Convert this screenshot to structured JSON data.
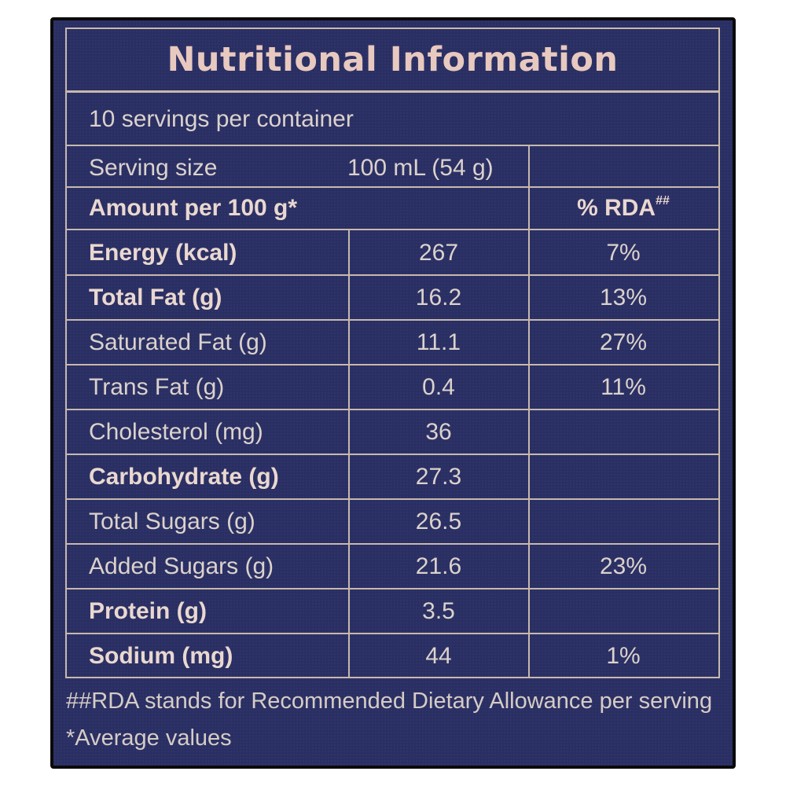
{
  "label": {
    "title": "Nutritional Information",
    "servings": "10 servings per container",
    "serving_size_label": "Serving size",
    "serving_size_value": "100 mL (54 g)",
    "amount_header": "Amount per 100 g*",
    "rda_header": "% RDA",
    "rda_header_mark": "##",
    "rows": [
      {
        "name": "Energy (kcal)",
        "value": "267",
        "rda": "7%",
        "bold": true
      },
      {
        "name": "Total Fat (g)",
        "value": "16.2",
        "rda": "13%",
        "bold": true
      },
      {
        "name": "Saturated Fat (g)",
        "value": "11.1",
        "rda": "27%",
        "bold": false
      },
      {
        "name": "Trans Fat (g)",
        "value": "0.4",
        "rda": "11%",
        "bold": false
      },
      {
        "name": "Cholesterol (mg)",
        "value": "36",
        "rda": "",
        "bold": false
      },
      {
        "name": "Carbohydrate (g)",
        "value": "27.3",
        "rda": "",
        "bold": true
      },
      {
        "name": "Total Sugars (g)",
        "value": "26.5",
        "rda": "",
        "bold": false
      },
      {
        "name": "Added Sugars (g)",
        "value": "21.6",
        "rda": "23%",
        "bold": false
      },
      {
        "name": "Protein (g)",
        "value": "3.5",
        "rda": "",
        "bold": true
      },
      {
        "name": "Sodium (mg)",
        "value": "44",
        "rda": "1%",
        "bold": true
      }
    ],
    "footnote_rda": "##RDA stands for Recommended Dietary Allowance per serving",
    "footnote_avg": "*Average values"
  },
  "colors": {
    "panel": "#2a2f63",
    "rule": "#c7b9ad",
    "text": "#dbd2cc",
    "title": "#e8c9bf"
  }
}
